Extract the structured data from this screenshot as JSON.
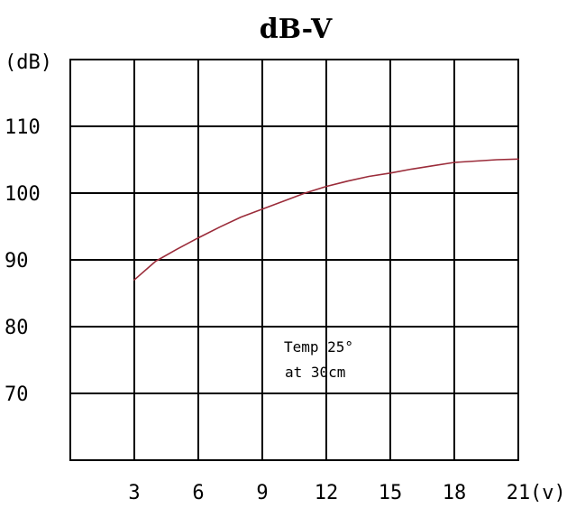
{
  "chart_data": {
    "type": "line",
    "title": "dB-V",
    "y_unit_label": "(dB)",
    "x_unit_label": "(v)",
    "x_ticks": [
      3,
      6,
      9,
      12,
      15,
      18,
      21
    ],
    "y_ticks": [
      70,
      80,
      90,
      100,
      110
    ],
    "xlim": [
      0,
      21
    ],
    "ylim": [
      60,
      120
    ],
    "grid": true,
    "series": [
      {
        "color": "#9b2c3a",
        "x": [
          3,
          4,
          5,
          6,
          7,
          8,
          9,
          10,
          11,
          12,
          13,
          14,
          15,
          16,
          17,
          18,
          19,
          20,
          21
        ],
        "y": [
          87.0,
          89.8,
          91.6,
          93.3,
          94.9,
          96.4,
          97.6,
          98.8,
          100.0,
          101.0,
          101.8,
          102.5,
          103.0,
          103.6,
          104.1,
          104.6,
          104.8,
          105.0,
          105.1
        ]
      }
    ],
    "annotation": [
      "Temp 25°",
      "at 30cm"
    ]
  }
}
